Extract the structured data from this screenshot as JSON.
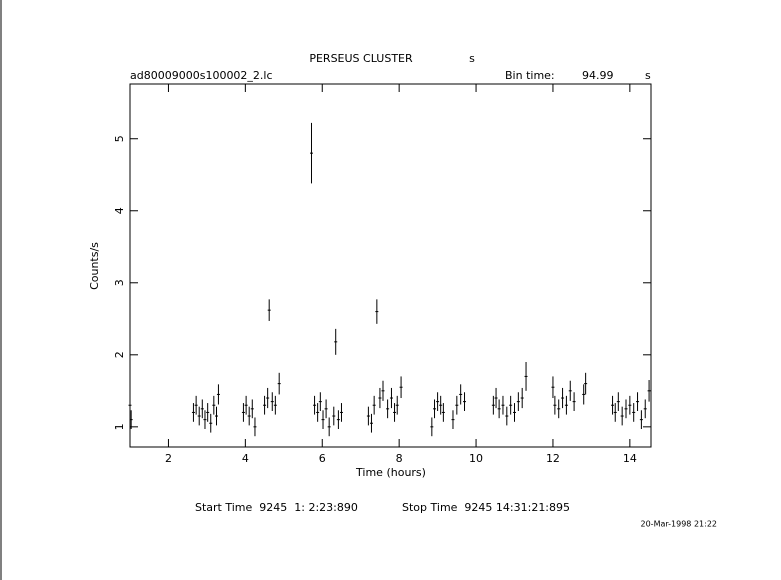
{
  "chart_data": {
    "type": "errorbar",
    "title": "PERSEUS CLUSTER",
    "title_unit": "s",
    "filename": "ad80009000s100002_2.lc",
    "bin_time_label": "Bin time:",
    "bin_time": "94.99",
    "bin_time_unit": "s",
    "x_label": "Time (hours)",
    "y_label": "Counts/s",
    "start_time": "Start Time  9245  1: 2:23:890",
    "stop_time": "Stop Time  9245 14:31:21:895",
    "date": "20-Mar-1998 21:22",
    "color": "#000000",
    "xlim": [
      1.0,
      14.55
    ],
    "ylim": [
      0.72,
      5.76
    ],
    "xticks": [
      2,
      4,
      6,
      8,
      10,
      12,
      14
    ],
    "yticks": [
      1,
      2,
      3,
      4,
      5
    ],
    "x": [
      1.0,
      1.03,
      2.65,
      2.72,
      2.8,
      2.88,
      2.95,
      3.02,
      3.1,
      3.18,
      3.25,
      3.3,
      3.95,
      4.02,
      4.1,
      4.18,
      4.25,
      4.5,
      4.58,
      4.62,
      4.7,
      4.78,
      4.88,
      5.72,
      5.8,
      5.88,
      5.95,
      6.02,
      6.1,
      6.18,
      6.3,
      6.35,
      6.42,
      6.5,
      7.2,
      7.28,
      7.35,
      7.42,
      7.5,
      7.58,
      7.7,
      7.8,
      7.88,
      7.95,
      8.05,
      8.85,
      8.92,
      9.0,
      9.08,
      9.15,
      9.4,
      9.5,
      9.6,
      9.7,
      10.45,
      10.52,
      10.6,
      10.7,
      10.8,
      10.9,
      11.0,
      11.1,
      11.2,
      11.3,
      12.0,
      12.05,
      12.15,
      12.25,
      12.35,
      12.45,
      12.55,
      12.8,
      12.85,
      13.55,
      13.62,
      13.7,
      13.8,
      13.9,
      14.0,
      14.1,
      14.2,
      14.3,
      14.4,
      14.5
    ],
    "values": [
      1.3,
      1.1,
      1.2,
      1.3,
      1.15,
      1.25,
      1.1,
      1.2,
      1.05,
      1.3,
      1.15,
      1.45,
      1.2,
      1.3,
      1.15,
      1.25,
      1.0,
      1.3,
      1.4,
      2.62,
      1.35,
      1.3,
      1.6,
      4.8,
      1.3,
      1.2,
      1.35,
      1.1,
      1.25,
      1.0,
      1.15,
      2.18,
      1.1,
      1.2,
      1.15,
      1.05,
      1.3,
      2.6,
      1.4,
      1.5,
      1.25,
      1.4,
      1.2,
      1.3,
      1.55,
      1.0,
      1.25,
      1.35,
      1.3,
      1.2,
      1.1,
      1.3,
      1.45,
      1.35,
      1.3,
      1.4,
      1.25,
      1.3,
      1.15,
      1.3,
      1.2,
      1.35,
      1.4,
      1.7,
      1.55,
      1.3,
      1.25,
      1.4,
      1.3,
      1.5,
      1.35,
      1.45,
      1.6,
      1.3,
      1.2,
      1.35,
      1.15,
      1.25,
      1.3,
      1.2,
      1.35,
      1.1,
      1.25,
      1.5
    ],
    "errors": [
      0.13,
      0.13,
      0.13,
      0.13,
      0.13,
      0.13,
      0.13,
      0.13,
      0.13,
      0.13,
      0.13,
      0.14,
      0.13,
      0.13,
      0.13,
      0.13,
      0.13,
      0.13,
      0.14,
      0.15,
      0.13,
      0.13,
      0.15,
      0.42,
      0.13,
      0.13,
      0.13,
      0.13,
      0.13,
      0.13,
      0.13,
      0.18,
      0.13,
      0.13,
      0.13,
      0.13,
      0.13,
      0.17,
      0.14,
      0.14,
      0.13,
      0.14,
      0.13,
      0.13,
      0.15,
      0.13,
      0.13,
      0.13,
      0.13,
      0.13,
      0.13,
      0.13,
      0.14,
      0.13,
      0.13,
      0.14,
      0.13,
      0.13,
      0.13,
      0.13,
      0.13,
      0.13,
      0.14,
      0.2,
      0.15,
      0.13,
      0.13,
      0.14,
      0.13,
      0.14,
      0.13,
      0.14,
      0.15,
      0.13,
      0.13,
      0.13,
      0.13,
      0.13,
      0.13,
      0.13,
      0.13,
      0.13,
      0.13,
      0.15
    ]
  }
}
